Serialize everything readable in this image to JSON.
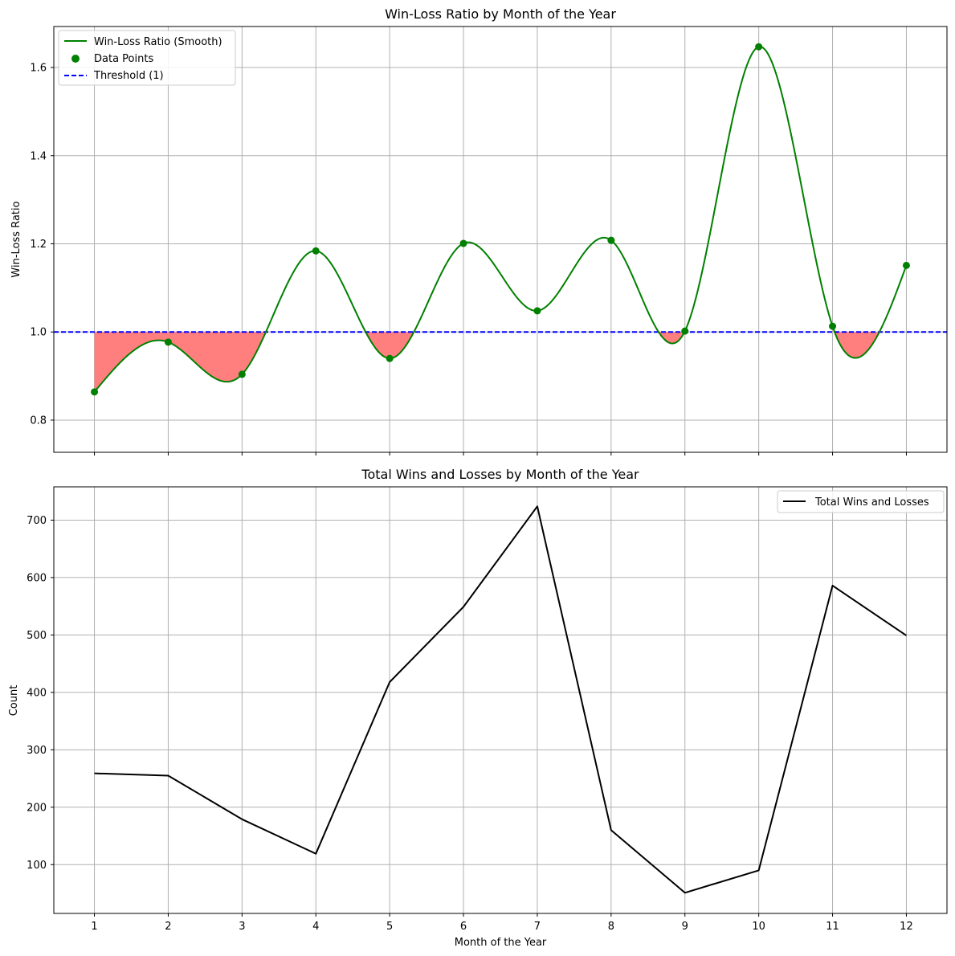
{
  "chart_data": [
    {
      "type": "line",
      "title": "Win-Loss Ratio by Month of the Year",
      "xlabel": "",
      "ylabel": "Win-Loss Ratio",
      "x": [
        1,
        2,
        3,
        4,
        5,
        6,
        7,
        8,
        9,
        10,
        11,
        12
      ],
      "xlim": [
        0.45,
        12.55
      ],
      "ylim": [
        0.727,
        1.693
      ],
      "yticks": [
        0.8,
        1.0,
        1.2,
        1.4,
        1.6
      ],
      "ytick_labels": [
        "0.8",
        "1.0",
        "1.2",
        "1.4",
        "1.6"
      ],
      "xticks_labeled": false,
      "grid": true,
      "legend_position": "top-left",
      "threshold": 1.0,
      "fill_below_threshold": true,
      "series": [
        {
          "name": "Win-Loss Ratio (Smooth)",
          "kind": "smooth-line",
          "color": "#008000",
          "values": [
            0.864,
            0.977,
            0.904,
            1.184,
            0.94,
            1.201,
            1.048,
            1.208,
            1.002,
            1.647,
            1.013,
            1.151
          ]
        },
        {
          "name": "Data Points",
          "kind": "scatter",
          "color": "#008000",
          "values": [
            0.864,
            0.977,
            0.904,
            1.184,
            0.94,
            1.201,
            1.048,
            1.208,
            1.002,
            1.647,
            1.013,
            1.151
          ]
        },
        {
          "name": "Threshold (1)",
          "kind": "dashed-hline",
          "color": "#0000ff",
          "value": 1.0
        }
      ],
      "fill_color": "#ff7f7f"
    },
    {
      "type": "line",
      "title": "Total Wins and Losses by Month of the Year",
      "xlabel": "Month of the Year",
      "ylabel": "Count",
      "x": [
        1,
        2,
        3,
        4,
        5,
        6,
        7,
        8,
        9,
        10,
        11,
        12
      ],
      "xtick_labels": [
        "1",
        "2",
        "3",
        "4",
        "5",
        "6",
        "7",
        "8",
        "9",
        "10",
        "11",
        "12"
      ],
      "xlim": [
        0.45,
        12.55
      ],
      "ylim": [
        15,
        758
      ],
      "yticks": [
        100,
        200,
        300,
        400,
        500,
        600,
        700
      ],
      "ytick_labels": [
        "100",
        "200",
        "300",
        "400",
        "500",
        "600",
        "700"
      ],
      "grid": true,
      "legend_position": "top-right",
      "series": [
        {
          "name": "Total Wins and Losses",
          "color": "#000000",
          "values": [
            259,
            255,
            179,
            119,
            418,
            549,
            724,
            160,
            51,
            90,
            586,
            499
          ]
        }
      ]
    }
  ]
}
